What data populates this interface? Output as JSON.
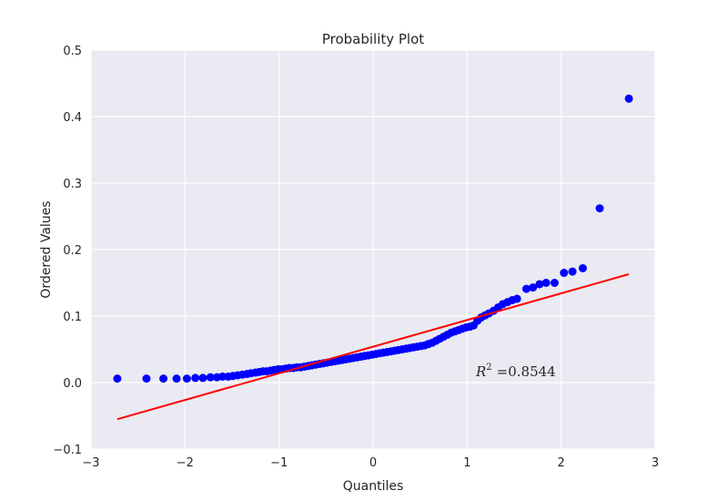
{
  "chart_data": {
    "type": "scatter",
    "title": "Probability Plot",
    "xlabel": "Quantiles",
    "ylabel": "Ordered Values",
    "xlim": [
      -3,
      3
    ],
    "ylim": [
      -0.1,
      0.5
    ],
    "xticks": [
      -3,
      -2,
      -1,
      0,
      1,
      2,
      3
    ],
    "xtick_labels": [
      "−3",
      "−2",
      "−1",
      "0",
      "1",
      "2",
      "3"
    ],
    "yticks": [
      -0.1,
      0.0,
      0.1,
      0.2,
      0.3,
      0.4,
      0.5
    ],
    "ytick_labels": [
      "−0.1",
      "0.0",
      "0.1",
      "0.2",
      "0.3",
      "0.4",
      "0.5"
    ],
    "grid": true,
    "background": "#EAEAF2",
    "marker_color": "#0000FF",
    "line_color": "#FF0000",
    "fit_line": {
      "x": [
        -2.72,
        2.72
      ],
      "y": [
        -0.055,
        0.163
      ]
    },
    "annotation": {
      "label": "R",
      "superscript": "2",
      "value": "=0.8544",
      "x": 1.1,
      "y": 0.015
    },
    "points": [
      [
        -2.72,
        0.006
      ],
      [
        -2.41,
        0.006
      ],
      [
        -2.23,
        0.006
      ],
      [
        -2.09,
        0.006
      ],
      [
        -1.98,
        0.006
      ],
      [
        -1.89,
        0.007
      ],
      [
        -1.81,
        0.007
      ],
      [
        -1.73,
        0.008
      ],
      [
        -1.66,
        0.008
      ],
      [
        -1.6,
        0.009
      ],
      [
        -1.54,
        0.009
      ],
      [
        -1.49,
        0.01
      ],
      [
        -1.44,
        0.011
      ],
      [
        -1.39,
        0.012
      ],
      [
        -1.34,
        0.013
      ],
      [
        -1.3,
        0.014
      ],
      [
        -1.25,
        0.015
      ],
      [
        -1.21,
        0.016
      ],
      [
        -1.17,
        0.017
      ],
      [
        -1.13,
        0.017
      ],
      [
        -1.09,
        0.018
      ],
      [
        -1.05,
        0.019
      ],
      [
        -1.01,
        0.02
      ],
      [
        -0.97,
        0.02
      ],
      [
        -0.93,
        0.021
      ],
      [
        -0.89,
        0.022
      ],
      [
        -0.85,
        0.022
      ],
      [
        -0.81,
        0.023
      ],
      [
        -0.77,
        0.023
      ],
      [
        -0.73,
        0.024
      ],
      [
        -0.69,
        0.025
      ],
      [
        -0.65,
        0.026
      ],
      [
        -0.61,
        0.027
      ],
      [
        -0.57,
        0.028
      ],
      [
        -0.53,
        0.029
      ],
      [
        -0.49,
        0.03
      ],
      [
        -0.45,
        0.031
      ],
      [
        -0.41,
        0.032
      ],
      [
        -0.37,
        0.033
      ],
      [
        -0.33,
        0.034
      ],
      [
        -0.29,
        0.035
      ],
      [
        -0.25,
        0.036
      ],
      [
        -0.21,
        0.037
      ],
      [
        -0.17,
        0.038
      ],
      [
        -0.13,
        0.039
      ],
      [
        -0.09,
        0.04
      ],
      [
        -0.05,
        0.041
      ],
      [
        -0.01,
        0.042
      ],
      [
        0.03,
        0.043
      ],
      [
        0.07,
        0.044
      ],
      [
        0.11,
        0.045
      ],
      [
        0.15,
        0.046
      ],
      [
        0.19,
        0.047
      ],
      [
        0.23,
        0.048
      ],
      [
        0.27,
        0.049
      ],
      [
        0.31,
        0.05
      ],
      [
        0.35,
        0.051
      ],
      [
        0.39,
        0.052
      ],
      [
        0.43,
        0.053
      ],
      [
        0.47,
        0.054
      ],
      [
        0.51,
        0.055
      ],
      [
        0.55,
        0.056
      ],
      [
        0.59,
        0.058
      ],
      [
        0.63,
        0.06
      ],
      [
        0.67,
        0.063
      ],
      [
        0.71,
        0.066
      ],
      [
        0.75,
        0.069
      ],
      [
        0.79,
        0.072
      ],
      [
        0.83,
        0.075
      ],
      [
        0.87,
        0.077
      ],
      [
        0.91,
        0.079
      ],
      [
        0.95,
        0.081
      ],
      [
        0.99,
        0.083
      ],
      [
        1.03,
        0.084
      ],
      [
        1.07,
        0.086
      ],
      [
        1.11,
        0.093
      ],
      [
        1.15,
        0.098
      ],
      [
        1.19,
        0.101
      ],
      [
        1.23,
        0.104
      ],
      [
        1.28,
        0.108
      ],
      [
        1.33,
        0.113
      ],
      [
        1.38,
        0.118
      ],
      [
        1.43,
        0.121
      ],
      [
        1.48,
        0.124
      ],
      [
        1.53,
        0.126
      ],
      [
        1.63,
        0.141
      ],
      [
        1.7,
        0.143
      ],
      [
        1.77,
        0.148
      ],
      [
        1.84,
        0.15
      ],
      [
        1.93,
        0.15
      ],
      [
        2.03,
        0.165
      ],
      [
        2.12,
        0.167
      ],
      [
        2.23,
        0.172
      ],
      [
        2.41,
        0.262
      ],
      [
        2.72,
        0.427
      ]
    ]
  }
}
